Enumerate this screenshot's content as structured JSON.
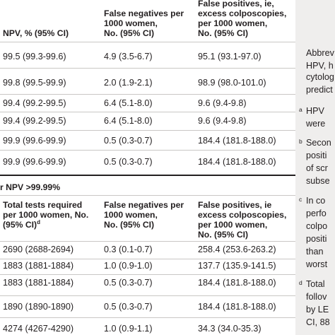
{
  "section1": {
    "headers": {
      "npv": [
        "NPV, % (95% CI)"
      ],
      "false_negatives": [
        "False negatives per",
        "1000 women,",
        "No. (95% CI)"
      ],
      "false_positives": [
        "False positives, ie,",
        "excess colposcopies,",
        "per 1000 women,",
        "No. (95% CI)"
      ]
    },
    "rows": [
      {
        "npv": "99.5 (99.3-99.6)",
        "false_negatives": "4.9 (3.5-6.7)",
        "false_positives": "95.1 (93.1-97.0)"
      },
      {
        "npv": "99.8 (99.5-99.9)",
        "false_negatives": "2.0 (1.9-2.1)",
        "false_positives": "98.9 (98.0-101.0)"
      },
      {
        "npv": "99.4 (99.2-99.5)",
        "false_negatives": "6.4 (5.1-8.0)",
        "false_positives": "9.6 (9.4-9.8)"
      },
      {
        "npv": "99.4 (99.2-99.5)",
        "false_negatives": "6.4 (5.1-8.0)",
        "false_positives": "9.6 (9.4-9.8)"
      },
      {
        "npv": "99.9 (99.6-99.9)",
        "false_negatives": "0.5 (0.3-0.7)",
        "false_positives": "184.4 (181.8-188.0)"
      },
      {
        "npv": "99.9 (99.6-99.9)",
        "false_negatives": "0.5 (0.3-0.7)",
        "false_positives": "184.4 (181.8-188.0)"
      }
    ]
  },
  "section2": {
    "title": "r NPV >99.99%",
    "headers": {
      "total_tests": [
        "Total tests required",
        "per 1000 women, No.",
        "(95% CI)"
      ],
      "total_tests_sup": "d",
      "false_negatives": [
        "False negatives per",
        "1000 women,",
        "No. (95% CI)"
      ],
      "false_positives": [
        "False positives, ie",
        "excess colposcopies,",
        "per 1000 women,",
        "No. (95% CI)"
      ]
    },
    "rows": [
      {
        "total_tests": "2690 (2688-2694)",
        "false_negatives": "0.3 (0.1-0.7)",
        "false_positives": "258.4 (253.6-263.2)"
      },
      {
        "total_tests": "1883 (1881-1884)",
        "false_negatives": "1.0 (0.9-1.0)",
        "false_positives": "137.7 (135.9-141.5)"
      },
      {
        "total_tests": "1883 (1881-1884)",
        "false_negatives": "0.5 (0.3-0.7)",
        "false_positives": "184.4 (181.8-188.0)"
      },
      {
        "total_tests": "1890 (1890-1890)",
        "false_negatives": "0.5 (0.3-0.7)",
        "false_positives": "184.4 (181.8-188.0)"
      },
      {
        "total_tests": "4274 (4267-4290)",
        "false_negatives": "1.0 (0.9-1.1)",
        "false_positives": "34.3 (34.0-35.3)"
      }
    ]
  },
  "footnotes": {
    "lines": [
      {
        "mark": "",
        "text": "Abbrev"
      },
      {
        "mark": "",
        "text": "HPV, h"
      },
      {
        "mark": "",
        "text": "cytolog"
      },
      {
        "mark": "",
        "text": "predict"
      },
      {
        "mark": "a",
        "text": "HPV "
      },
      {
        "mark": "",
        "text": "were"
      },
      {
        "mark": "b",
        "text": "Secon"
      },
      {
        "mark": "",
        "text": "positi"
      },
      {
        "mark": "",
        "text": "of scr"
      },
      {
        "mark": "",
        "text": "subse"
      },
      {
        "mark": "c",
        "text": "In co"
      },
      {
        "mark": "",
        "text": "perfo"
      },
      {
        "mark": "",
        "text": "colpo"
      },
      {
        "mark": "",
        "text": "positi"
      },
      {
        "mark": "",
        "text": "than "
      },
      {
        "mark": "",
        "text": "worst"
      },
      {
        "mark": "d",
        "text": "Total"
      },
      {
        "mark": "",
        "text": "follov"
      },
      {
        "mark": "",
        "text": "by LE"
      },
      {
        "mark": "",
        "text": "CI, 88"
      }
    ]
  }
}
